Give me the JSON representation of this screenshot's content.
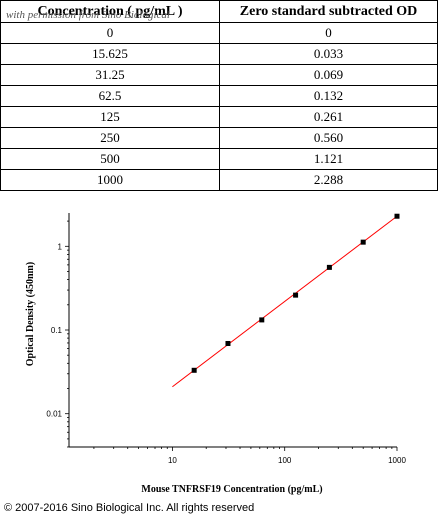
{
  "watermark": "with permission from Sino Biological",
  "table": {
    "headers": [
      "Concentration ( pg/mL )",
      "Zero standard subtracted OD"
    ],
    "rows": [
      [
        "0",
        "0"
      ],
      [
        "15.625",
        "0.033"
      ],
      [
        "31.25",
        "0.069"
      ],
      [
        "62.5",
        "0.132"
      ],
      [
        "125",
        "0.261"
      ],
      [
        "250",
        "0.560"
      ],
      [
        "500",
        "1.121"
      ],
      [
        "1000",
        "2.288"
      ]
    ]
  },
  "chart_data": {
    "type": "scatter",
    "title": "",
    "xlabel": "Mouse TNFRSF19 Concentration (pg/mL)",
    "ylabel": "Optical Density (450nm)",
    "x_scale": "log",
    "y_scale": "log",
    "xlim": [
      1.2,
      1000
    ],
    "ylim": [
      0.004,
      2.5
    ],
    "xticks": [
      10,
      100,
      1000
    ],
    "xtick_labels": [
      "10",
      "100",
      "1000"
    ],
    "yticks": [
      0.01,
      0.1,
      1
    ],
    "ytick_labels": [
      "0.01",
      "0.1",
      "1"
    ],
    "grid": false,
    "legend": "none",
    "series": [
      {
        "x": [
          15.625,
          31.25,
          62.5,
          125,
          250,
          500,
          1000
        ],
        "y": [
          0.033,
          0.069,
          0.132,
          0.261,
          0.56,
          1.121,
          2.288
        ],
        "color": "#000000",
        "marker": "square"
      }
    ],
    "fit": {
      "x": [
        10,
        1000
      ],
      "y": [
        0.021,
        2.288
      ],
      "color": "#ff0000"
    }
  },
  "copyright": "© 2007-2016 Sino Biological Inc. All rights reserved"
}
